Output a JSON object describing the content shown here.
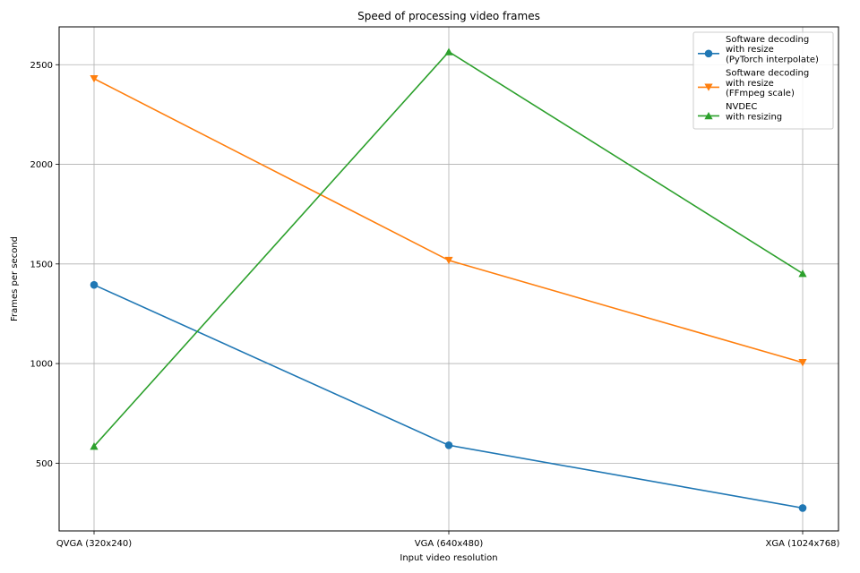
{
  "chart_data": {
    "type": "line",
    "title": "Speed of processing video frames",
    "xlabel": "Input video resolution",
    "ylabel": "Frames per second",
    "categories": [
      "QVGA (320x240)",
      "VGA (640x480)",
      "XGA (1024x768)"
    ],
    "ylim": [
      160,
      2690
    ],
    "yticks": [
      500,
      1000,
      1500,
      2000,
      2500
    ],
    "grid": true,
    "legend_position": "top-right",
    "series": [
      {
        "name": "Software decoding\nwith resize\n(PyTorch interpolate)",
        "values": [
          1395,
          590,
          275
        ],
        "color": "#1f77b4",
        "marker": "circle"
      },
      {
        "name": "Software decoding\nwith resize\n(FFmpeg scale)",
        "values": [
          2430,
          1518,
          1005
        ],
        "color": "#ff7f0e",
        "marker": "triangle-down"
      },
      {
        "name": "NVDEC\nwith resizing",
        "values": [
          585,
          2565,
          1452
        ],
        "color": "#2ca02c",
        "marker": "triangle-up"
      }
    ]
  }
}
